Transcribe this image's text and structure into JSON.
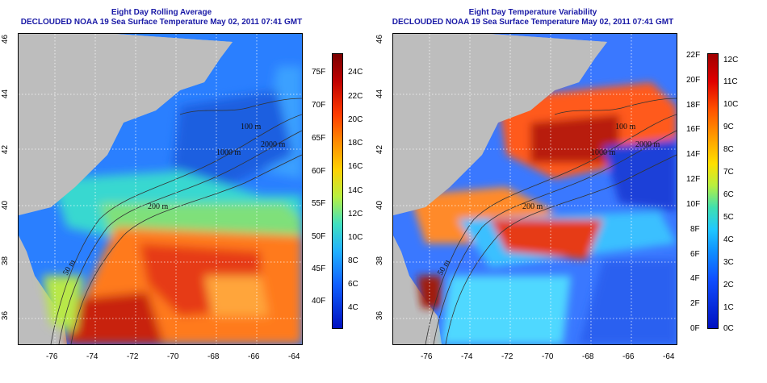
{
  "panels": [
    {
      "title_line1": "Eight Day Rolling Average",
      "title_line2": "DECLOUDED NOAA 19 Sea Surface Temperature May 02, 2011 07:41 GMT",
      "contour_labels": [
        "100 m",
        "1000 m",
        "2000 m",
        "200 m",
        "50 m"
      ],
      "colorbar_left_labels": [],
      "colorbar_right_labels": [
        "75F",
        "70F",
        "65F",
        "60F",
        "55F",
        "50F",
        "45F",
        "40F"
      ],
      "colorbar_inner_labels": [
        "24C",
        "22C",
        "20C",
        "18C",
        "16C",
        "14C",
        "12C",
        "10C",
        "8C",
        "6C",
        "4C"
      ]
    },
    {
      "title_line1": "Eight Day Temperature Variability",
      "title_line2": "DECLOUDED NOAA 19 Sea Surface Temperature May 02, 2011 07:41 GMT",
      "contour_labels": [
        "100 m",
        "1000 m",
        "2000 m",
        "200 m",
        "50 m"
      ],
      "colorbar_left_labels": [
        "22F",
        "20F",
        "18F",
        "16F",
        "14F",
        "12F",
        "10F",
        "8F",
        "6F",
        "4F",
        "2F",
        "0F"
      ],
      "colorbar_right_labels": [],
      "colorbar_inner_labels": [
        "12C",
        "11C",
        "10C",
        "9C",
        "8C",
        "7C",
        "6C",
        "5C",
        "4C",
        "3C",
        "2C",
        "1C",
        "0C"
      ]
    }
  ],
  "lon_ticks": [
    "-76",
    "-74",
    "-72",
    "-70",
    "-68",
    "-66",
    "-64"
  ],
  "lat_ticks": [
    "46",
    "44",
    "42",
    "40",
    "38",
    "36"
  ]
}
